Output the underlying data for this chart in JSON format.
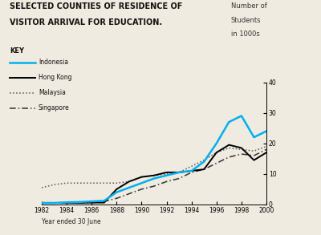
{
  "title_line1": "SELECTED COUNTIES OF RESIDENCE OF",
  "title_line2": "VISITOR ARRIVAL FOR EDUCATION.",
  "ylabel_line1": "Number of",
  "ylabel_line2": "Students",
  "ylabel_line3": "in 1000s",
  "xlabel": "Year ended 30 June",
  "years": [
    1982,
    1983,
    1984,
    1985,
    1986,
    1987,
    1988,
    1989,
    1990,
    1991,
    1992,
    1993,
    1994,
    1995,
    1996,
    1997,
    1998,
    1999,
    2000
  ],
  "indonesia": [
    0.5,
    0.5,
    0.7,
    0.8,
    1.0,
    1.2,
    4.0,
    5.5,
    7.0,
    8.5,
    9.5,
    10.5,
    11.0,
    14.0,
    20.0,
    27.0,
    29.0,
    22.0,
    24.0
  ],
  "hong_kong": [
    0.5,
    0.5,
    0.5,
    0.5,
    0.6,
    0.6,
    5.0,
    7.5,
    9.0,
    9.5,
    10.5,
    10.5,
    11.0,
    11.5,
    17.0,
    19.5,
    18.5,
    14.5,
    17.0
  ],
  "malaysia": [
    5.5,
    6.5,
    7.0,
    7.0,
    7.0,
    7.0,
    7.0,
    7.5,
    9.0,
    9.5,
    10.0,
    10.5,
    12.5,
    14.5,
    17.0,
    18.5,
    18.0,
    17.5,
    19.0
  ],
  "singapore": [
    0.5,
    0.5,
    0.5,
    0.5,
    0.5,
    1.0,
    2.0,
    3.5,
    5.0,
    6.0,
    7.5,
    8.5,
    10.5,
    11.5,
    13.5,
    15.5,
    16.5,
    16.0,
    18.0
  ],
  "indonesia_color": "#00b0f0",
  "hong_kong_color": "#000000",
  "malaysia_color": "#555555",
  "singapore_color": "#333333",
  "ylim": [
    0,
    40
  ],
  "yticks": [
    0,
    10,
    20,
    30,
    40
  ],
  "xticks": [
    1982,
    1984,
    1986,
    1988,
    1990,
    1992,
    1994,
    1996,
    1998,
    2000
  ],
  "bg_color": "#f0ebe0",
  "key_label": "KEY"
}
